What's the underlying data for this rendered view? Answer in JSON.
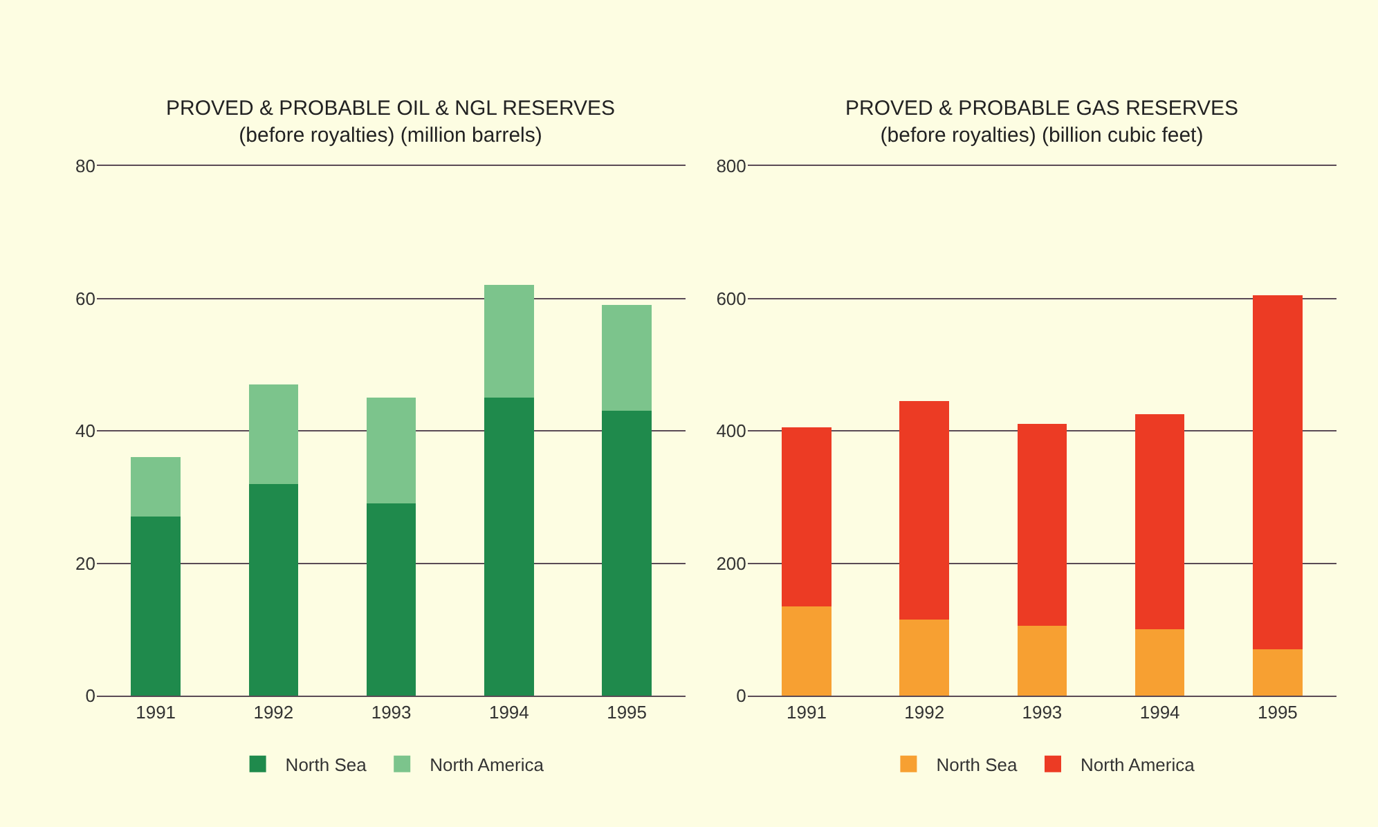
{
  "chart_data": [
    {
      "type": "bar",
      "title": "PROVED & PROBABLE OIL & NGL RESERVES",
      "subtitle": "(before royalties) (million barrels)",
      "categories": [
        "1991",
        "1992",
        "1993",
        "1994",
        "1995"
      ],
      "stacked": true,
      "series": [
        {
          "name": "North Sea",
          "color": "#1f8a4c",
          "values": [
            27,
            32,
            29,
            45,
            43
          ]
        },
        {
          "name": "North America",
          "color": "#7cc48c",
          "values": [
            9,
            15,
            16,
            17,
            16
          ]
        }
      ],
      "ylim": [
        0,
        80
      ],
      "yticks": [
        0,
        20,
        40,
        60,
        80
      ],
      "grid": "y",
      "legend": "bottom"
    },
    {
      "type": "bar",
      "title": "PROVED & PROBABLE GAS RESERVES",
      "subtitle": "(before royalties) (billion cubic feet)",
      "categories": [
        "1991",
        "1992",
        "1993",
        "1994",
        "1995"
      ],
      "stacked": true,
      "series": [
        {
          "name": "North Sea",
          "color": "#f7a032",
          "values": [
            135,
            115,
            105,
            100,
            70
          ]
        },
        {
          "name": "North America",
          "color": "#ec3b24",
          "values": [
            270,
            330,
            305,
            325,
            535
          ]
        }
      ],
      "ylim": [
        0,
        800
      ],
      "yticks": [
        0,
        200,
        400,
        600,
        800
      ],
      "grid": "y",
      "legend": "bottom"
    }
  ]
}
